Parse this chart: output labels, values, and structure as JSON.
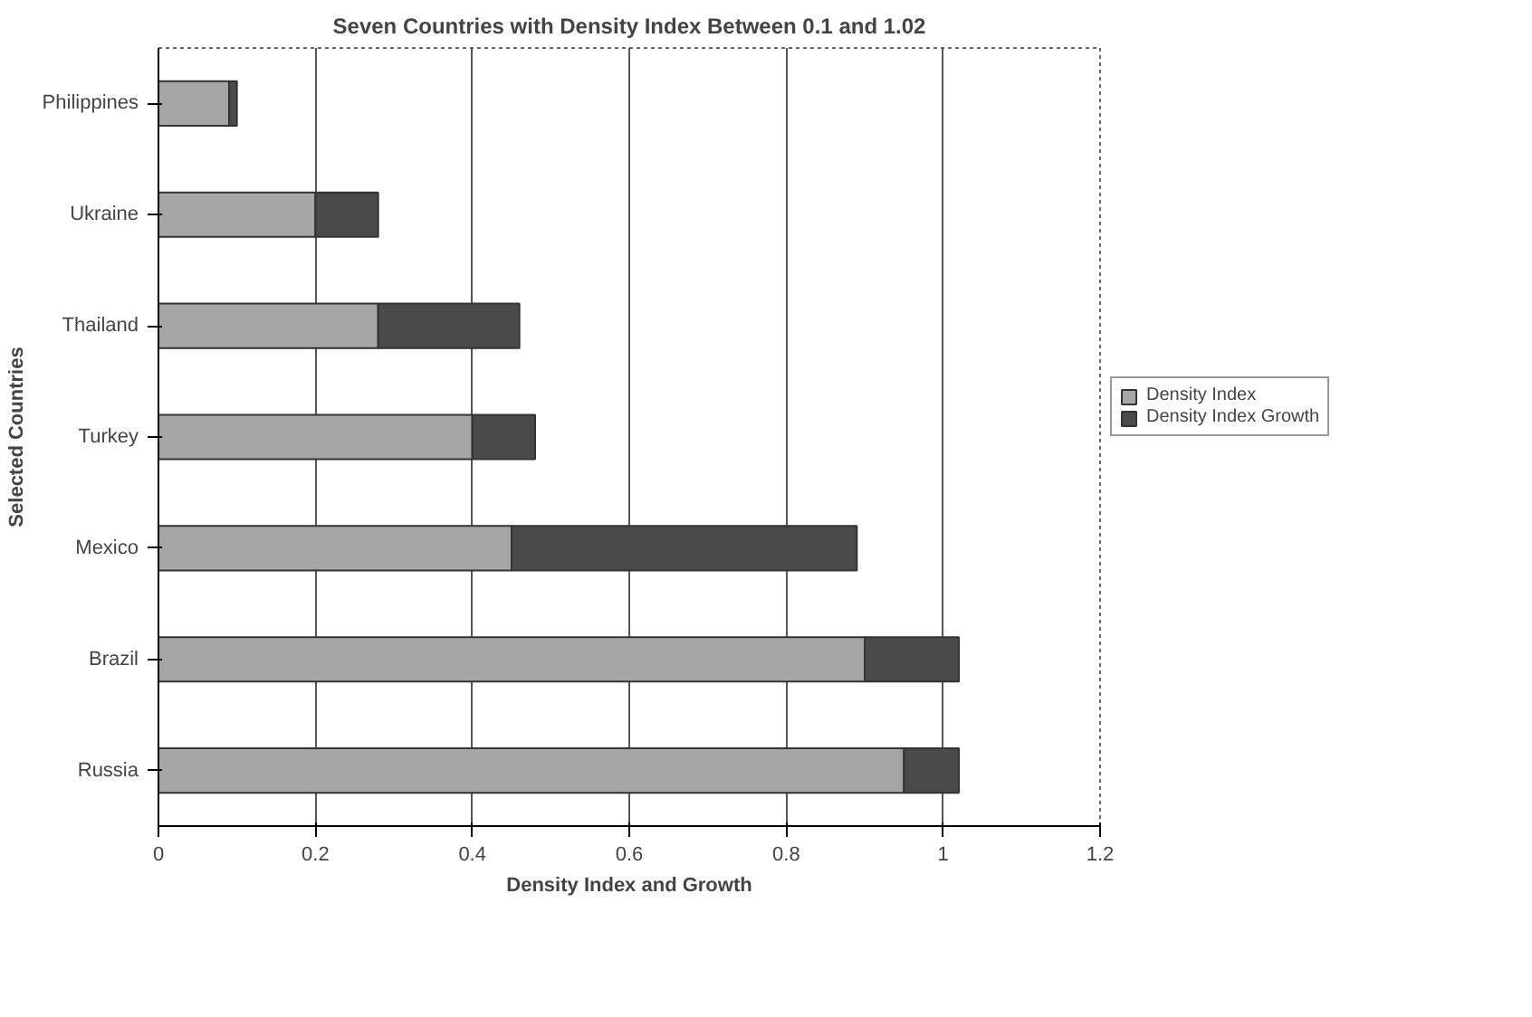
{
  "chart_data": {
    "type": "bar",
    "orientation": "horizontal",
    "stacked": true,
    "title": "Seven Countries with Density Index Between 0.1 and 1.02",
    "xlabel": "Density Index and Growth",
    "ylabel": "Selected Countries",
    "categories": [
      "Philippines",
      "Ukraine",
      "Thailand",
      "Turkey",
      "Mexico",
      "Brazil",
      "Russia"
    ],
    "series": [
      {
        "name": "Density Index",
        "color": "#a6a6a6",
        "values": [
          0.09,
          0.2,
          0.28,
          0.4,
          0.45,
          0.9,
          0.95
        ]
      },
      {
        "name": "Density Index Growth",
        "color": "#4a4a4a",
        "values": [
          0.01,
          0.08,
          0.18,
          0.08,
          0.44,
          0.12,
          0.07
        ]
      }
    ],
    "xlim": [
      0,
      1.2
    ],
    "xticks": [
      0,
      0.2,
      0.4,
      0.6,
      0.8,
      1,
      1.2
    ],
    "grid": "x",
    "legend": "right"
  }
}
